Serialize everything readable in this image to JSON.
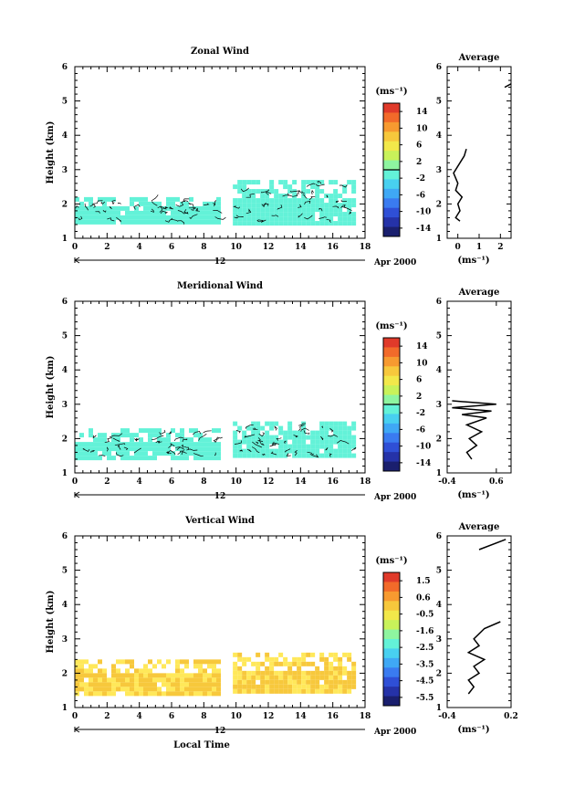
{
  "common": {
    "ylabel": "Height (km)",
    "date_label": "Apr 2000",
    "day_label": "12",
    "xlabel": "Local Time",
    "units": "(ms⁻¹)",
    "x_ticks": [
      "0",
      "2",
      "4",
      "6",
      "8",
      "10",
      "12",
      "14",
      "16",
      "18"
    ],
    "y_ticks": [
      "1",
      "2",
      "3",
      "4",
      "5",
      "6"
    ]
  },
  "panels": [
    {
      "title": "Zonal Wind",
      "colorbar_ticks": [
        "14",
        "10",
        "6",
        "2",
        "-2",
        "-6",
        "-10",
        "-14"
      ],
      "avg_title": "Average",
      "avg_xticks": [
        "0",
        "1",
        "2"
      ],
      "avg_units": "(ms⁻¹)"
    },
    {
      "title": "Meridional Wind",
      "colorbar_ticks": [
        "14",
        "10",
        "6",
        "2",
        "-2",
        "-6",
        "-10",
        "-14"
      ],
      "avg_title": "Average",
      "avg_xticks": [
        "-0.4",
        "0.6"
      ],
      "avg_units": "(ms⁻¹)"
    },
    {
      "title": "Vertical Wind",
      "colorbar_ticks": [
        "1.5",
        "0.6",
        "-0.5",
        "-1.6",
        "-2.5",
        "-3.5",
        "-4.5",
        "-5.5"
      ],
      "avg_title": "Average",
      "avg_xticks": [
        "-0.4",
        "0.2"
      ],
      "avg_units": "(ms⁻¹)"
    }
  ],
  "colors": {
    "zonal_fill": "#63f2d8",
    "meridional_fill": "#63f2d8",
    "vertical_fill": "#f7c83c",
    "vertical_fill_light": "#ffe85a",
    "scale": [
      "#1a1f6e",
      "#2532a8",
      "#2f4fd6",
      "#3a7bf0",
      "#3fa8f5",
      "#48d0f0",
      "#63f2d8",
      "#8ef5a0",
      "#c8f25a",
      "#f2e84a",
      "#f7c83c",
      "#f79a30",
      "#f26a2a",
      "#e03a2a"
    ]
  },
  "chart_data": [
    {
      "type": "heatmap",
      "title": "Zonal Wind",
      "xlabel": "",
      "ylabel": "Height (km)",
      "xlim": [
        0,
        18
      ],
      "ylim": [
        1,
        6
      ],
      "data_segments": [
        {
          "x": [
            0,
            8.9
          ],
          "y": [
            1.45,
            2.2
          ]
        },
        {
          "x": [
            9.8,
            17.3
          ],
          "y": [
            1.45,
            2.7
          ]
        }
      ],
      "colorbar": {
        "min": -14,
        "max": 14,
        "ticks": [
          14,
          10,
          6,
          2,
          -2,
          -6,
          -10,
          -14
        ]
      },
      "average_profile": {
        "xlim": [
          -0.5,
          2.5
        ],
        "xticks": [
          0,
          1,
          2
        ],
        "ylim": [
          1,
          6
        ],
        "points": [
          [
            0.1,
            1.5
          ],
          [
            -0.1,
            1.6
          ],
          [
            0.1,
            1.8
          ],
          [
            0,
            2.0
          ],
          [
            0.2,
            2.2
          ],
          [
            -0.1,
            2.4
          ],
          [
            0,
            2.6
          ],
          [
            -0.2,
            2.9
          ],
          [
            0.3,
            3.4
          ],
          [
            0.4,
            3.6
          ],
          [
            2.2,
            5.4
          ],
          [
            2.6,
            5.5
          ]
        ]
      }
    },
    {
      "type": "heatmap",
      "title": "Meridional Wind",
      "xlabel": "",
      "ylabel": "Height (km)",
      "xlim": [
        0,
        18
      ],
      "ylim": [
        1,
        6
      ],
      "data_segments": [
        {
          "x": [
            0,
            8.9
          ],
          "y": [
            1.45,
            2.3
          ]
        },
        {
          "x": [
            9.8,
            17.3
          ],
          "y": [
            1.45,
            2.5
          ]
        }
      ],
      "colorbar": {
        "min": -14,
        "max": 14,
        "ticks": [
          14,
          10,
          6,
          2,
          -2,
          -6,
          -10,
          -14
        ]
      },
      "average_profile": {
        "xlim": [
          -0.4,
          0.9
        ],
        "xticks": [
          -0.4,
          0.6
        ],
        "ylim": [
          1,
          6
        ],
        "points": [
          [
            0.1,
            1.4
          ],
          [
            0.0,
            1.6
          ],
          [
            0.2,
            1.8
          ],
          [
            0.05,
            2.0
          ],
          [
            0.3,
            2.2
          ],
          [
            0.0,
            2.4
          ],
          [
            0.4,
            2.6
          ],
          [
            -0.1,
            2.7
          ],
          [
            0.5,
            2.8
          ],
          [
            -0.3,
            2.9
          ],
          [
            0.6,
            3.0
          ],
          [
            -0.3,
            3.1
          ]
        ]
      }
    },
    {
      "type": "heatmap",
      "title": "Vertical Wind",
      "xlabel": "Local Time",
      "ylabel": "Height (km)",
      "xlim": [
        0,
        18
      ],
      "ylim": [
        1,
        6
      ],
      "data_segments": [
        {
          "x": [
            0,
            8.9
          ],
          "y": [
            1.45,
            2.4
          ]
        },
        {
          "x": [
            9.8,
            17.3
          ],
          "y": [
            1.45,
            2.6
          ]
        }
      ],
      "colorbar": {
        "min": -5.5,
        "max": 1.5,
        "ticks": [
          1.5,
          0.6,
          -0.5,
          -1.6,
          -2.5,
          -3.5,
          -4.5,
          -5.5
        ]
      },
      "average_profile": {
        "xlim": [
          -0.4,
          0.2
        ],
        "xticks": [
          -0.4,
          0.2
        ],
        "ylim": [
          1,
          6
        ],
        "points": [
          [
            -0.2,
            1.4
          ],
          [
            -0.15,
            1.6
          ],
          [
            -0.2,
            1.8
          ],
          [
            -0.1,
            2.0
          ],
          [
            -0.15,
            2.2
          ],
          [
            -0.05,
            2.4
          ],
          [
            -0.2,
            2.6
          ],
          [
            -0.1,
            2.8
          ],
          [
            -0.15,
            3.0
          ],
          [
            -0.05,
            3.3
          ],
          [
            0.1,
            3.5
          ],
          [
            -0.1,
            5.6
          ],
          [
            0.15,
            5.9
          ]
        ]
      }
    }
  ]
}
